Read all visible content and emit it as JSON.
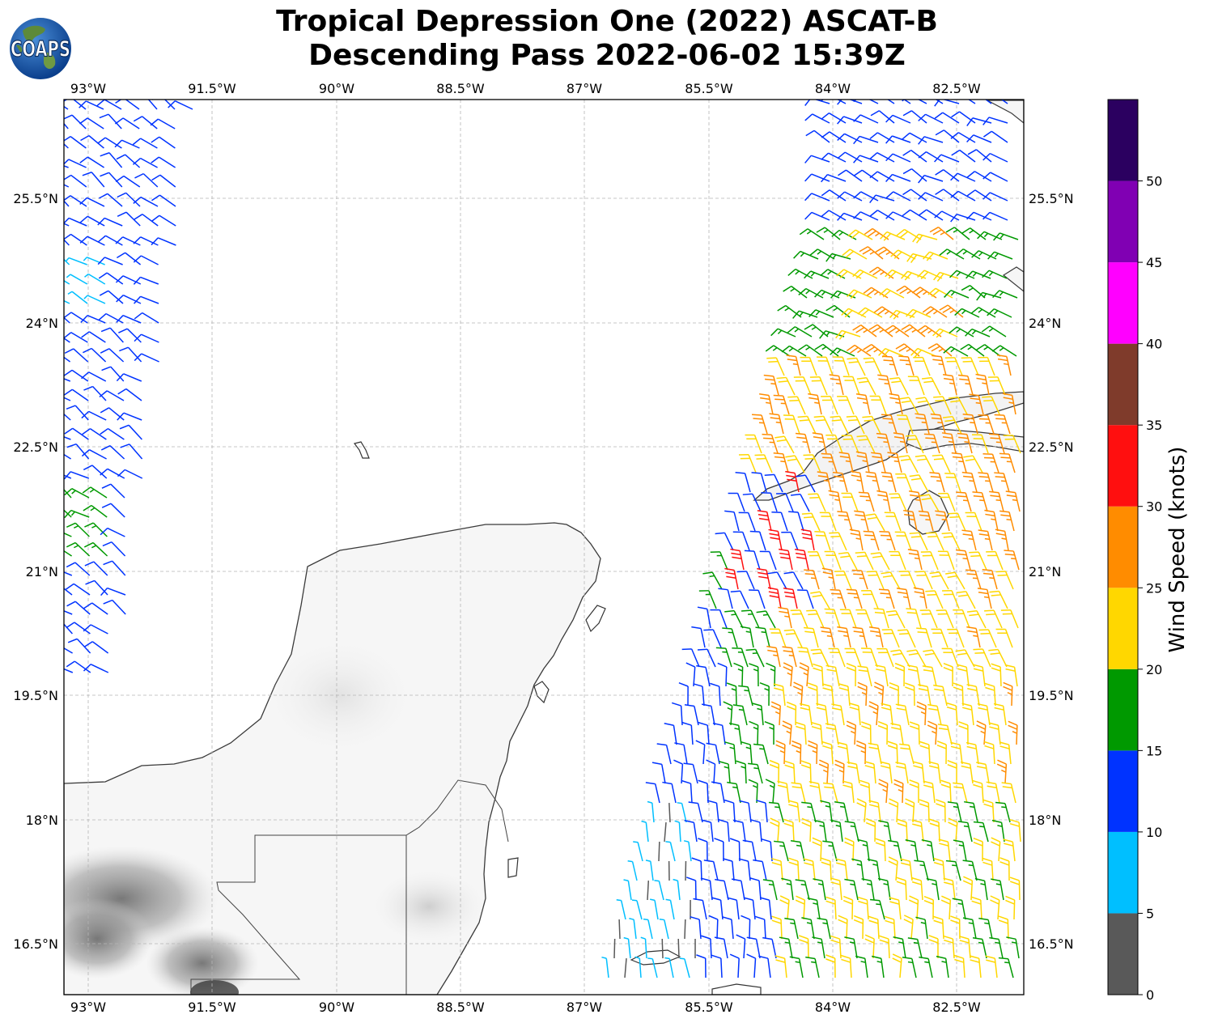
{
  "title": {
    "line1": "Tropical Depression One (2022) ASCAT-B",
    "line2": "Descending Pass 2022-06-02 15:39Z"
  },
  "logo": {
    "text": "COAPS",
    "icon": "globe-logo-icon"
  },
  "map": {
    "lon_ticks": [
      "93°W",
      "91.5°W",
      "90°W",
      "88.5°W",
      "87°W",
      "85.5°W",
      "84°W",
      "82.5°W"
    ],
    "lat_ticks": [
      "25.5°N",
      "24°N",
      "22.5°N",
      "21°N",
      "19.5°N",
      "18°N",
      "16.5°N"
    ],
    "gridlines": true,
    "basemap": "grayscale terrain with coastlines and borders",
    "wind_barbs": "two swaths of wind barbs colored by wind speed"
  },
  "colorbar": {
    "label": "Wind Speed (knots)",
    "ticks": [
      "0",
      "5",
      "10",
      "15",
      "20",
      "25",
      "30",
      "35",
      "40",
      "45",
      "50"
    ],
    "bins": [
      {
        "range": [
          0,
          5
        ],
        "color": "#595959"
      },
      {
        "range": [
          5,
          10
        ],
        "color": "#00bfff"
      },
      {
        "range": [
          10,
          15
        ],
        "color": "#0033ff"
      },
      {
        "range": [
          15,
          20
        ],
        "color": "#009900"
      },
      {
        "range": [
          20,
          25
        ],
        "color": "#ffd700"
      },
      {
        "range": [
          25,
          30
        ],
        "color": "#ff8c00"
      },
      {
        "range": [
          30,
          35
        ],
        "color": "#ff0f0f"
      },
      {
        "range": [
          35,
          40
        ],
        "color": "#7f3b2b"
      },
      {
        "range": [
          40,
          45
        ],
        "color": "#ff00ff"
      },
      {
        "range": [
          45,
          50
        ],
        "color": "#8000b3"
      },
      {
        "range": [
          50,
          55
        ],
        "color": "#2b0060"
      }
    ]
  }
}
